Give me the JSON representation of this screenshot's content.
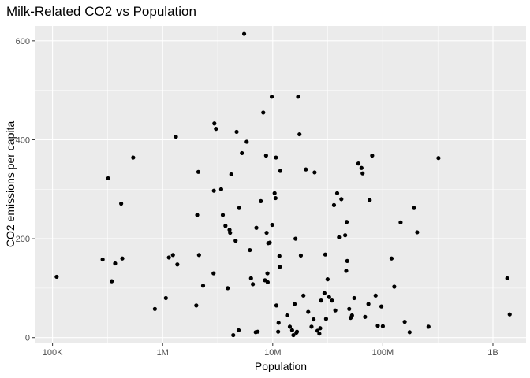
{
  "chart_data": {
    "type": "scatter",
    "title": "Milk-Related CO2 vs Population",
    "xlabel": "Population",
    "ylabel": "CO2 emissions per capita",
    "x_scale": "log10",
    "xlim": [
      70000,
      2000000000
    ],
    "ylim": [
      -10,
      630
    ],
    "x_ticks": [
      {
        "value": 100000,
        "label": "100K"
      },
      {
        "value": 1000000,
        "label": "1M"
      },
      {
        "value": 10000000,
        "label": "10M"
      },
      {
        "value": 100000000,
        "label": "100M"
      },
      {
        "value": 1000000000,
        "label": "1B"
      }
    ],
    "y_ticks": [
      {
        "value": 0,
        "label": "0"
      },
      {
        "value": 200,
        "label": "200"
      },
      {
        "value": 400,
        "label": "400"
      },
      {
        "value": 600,
        "label": "600"
      }
    ],
    "grid": true,
    "background": "#ebebeb",
    "grid_color": "#ffffff",
    "point_color": "#000000",
    "points": [
      {
        "x": 109000,
        "y": 123
      },
      {
        "x": 285000,
        "y": 158
      },
      {
        "x": 320000,
        "y": 322
      },
      {
        "x": 345000,
        "y": 114
      },
      {
        "x": 370000,
        "y": 150
      },
      {
        "x": 420000,
        "y": 271
      },
      {
        "x": 430000,
        "y": 160
      },
      {
        "x": 540000,
        "y": 364
      },
      {
        "x": 850000,
        "y": 58
      },
      {
        "x": 1070000,
        "y": 80
      },
      {
        "x": 1140000,
        "y": 162
      },
      {
        "x": 1240000,
        "y": 167
      },
      {
        "x": 1320000,
        "y": 406
      },
      {
        "x": 1360000,
        "y": 148
      },
      {
        "x": 2020000,
        "y": 65
      },
      {
        "x": 2060000,
        "y": 248
      },
      {
        "x": 2110000,
        "y": 335
      },
      {
        "x": 2140000,
        "y": 167
      },
      {
        "x": 2330000,
        "y": 105
      },
      {
        "x": 2900000,
        "y": 130
      },
      {
        "x": 2920000,
        "y": 297
      },
      {
        "x": 2950000,
        "y": 433
      },
      {
        "x": 3050000,
        "y": 422
      },
      {
        "x": 3400000,
        "y": 300
      },
      {
        "x": 3520000,
        "y": 248
      },
      {
        "x": 3720000,
        "y": 226
      },
      {
        "x": 3900000,
        "y": 100
      },
      {
        "x": 4050000,
        "y": 218
      },
      {
        "x": 4100000,
        "y": 212
      },
      {
        "x": 4200000,
        "y": 330
      },
      {
        "x": 4380000,
        "y": 5
      },
      {
        "x": 4600000,
        "y": 196
      },
      {
        "x": 4700000,
        "y": 416
      },
      {
        "x": 4900000,
        "y": 15
      },
      {
        "x": 4950000,
        "y": 262
      },
      {
        "x": 5250000,
        "y": 373
      },
      {
        "x": 5500000,
        "y": 614
      },
      {
        "x": 5800000,
        "y": 396
      },
      {
        "x": 6200000,
        "y": 177
      },
      {
        "x": 6350000,
        "y": 120
      },
      {
        "x": 6600000,
        "y": 108
      },
      {
        "x": 7000000,
        "y": 11
      },
      {
        "x": 7100000,
        "y": 222
      },
      {
        "x": 7300000,
        "y": 12
      },
      {
        "x": 7800000,
        "y": 276
      },
      {
        "x": 8200000,
        "y": 455
      },
      {
        "x": 8500000,
        "y": 116
      },
      {
        "x": 8700000,
        "y": 368
      },
      {
        "x": 8800000,
        "y": 212
      },
      {
        "x": 8950000,
        "y": 130
      },
      {
        "x": 9000000,
        "y": 112
      },
      {
        "x": 9100000,
        "y": 191
      },
      {
        "x": 9400000,
        "y": 192
      },
      {
        "x": 9800000,
        "y": 487
      },
      {
        "x": 9900000,
        "y": 228
      },
      {
        "x": 10400000,
        "y": 292
      },
      {
        "x": 10600000,
        "y": 282
      },
      {
        "x": 10700000,
        "y": 364
      },
      {
        "x": 10800000,
        "y": 65
      },
      {
        "x": 11200000,
        "y": 12
      },
      {
        "x": 11300000,
        "y": 30
      },
      {
        "x": 11500000,
        "y": 165
      },
      {
        "x": 11600000,
        "y": 143
      },
      {
        "x": 11700000,
        "y": 337
      },
      {
        "x": 13500000,
        "y": 45
      },
      {
        "x": 14300000,
        "y": 22
      },
      {
        "x": 15000000,
        "y": 15
      },
      {
        "x": 15400000,
        "y": 5
      },
      {
        "x": 15800000,
        "y": 68
      },
      {
        "x": 16100000,
        "y": 200
      },
      {
        "x": 16400000,
        "y": 10
      },
      {
        "x": 16600000,
        "y": 12
      },
      {
        "x": 17000000,
        "y": 487
      },
      {
        "x": 17500000,
        "y": 411
      },
      {
        "x": 18000000,
        "y": 166
      },
      {
        "x": 19000000,
        "y": 85
      },
      {
        "x": 20000000,
        "y": 340
      },
      {
        "x": 21000000,
        "y": 52
      },
      {
        "x": 22500000,
        "y": 22
      },
      {
        "x": 23500000,
        "y": 37
      },
      {
        "x": 24000000,
        "y": 334
      },
      {
        "x": 25500000,
        "y": 14
      },
      {
        "x": 26500000,
        "y": 8
      },
      {
        "x": 27000000,
        "y": 19
      },
      {
        "x": 27500000,
        "y": 75
      },
      {
        "x": 29500000,
        "y": 90
      },
      {
        "x": 30000000,
        "y": 168
      },
      {
        "x": 30500000,
        "y": 38
      },
      {
        "x": 31500000,
        "y": 118
      },
      {
        "x": 32500000,
        "y": 82
      },
      {
        "x": 34500000,
        "y": 75
      },
      {
        "x": 36000000,
        "y": 268
      },
      {
        "x": 37000000,
        "y": 55
      },
      {
        "x": 38500000,
        "y": 292
      },
      {
        "x": 40000000,
        "y": 203
      },
      {
        "x": 42000000,
        "y": 280
      },
      {
        "x": 45500000,
        "y": 207
      },
      {
        "x": 46500000,
        "y": 135
      },
      {
        "x": 47000000,
        "y": 234
      },
      {
        "x": 47500000,
        "y": 155
      },
      {
        "x": 49500000,
        "y": 58
      },
      {
        "x": 51000000,
        "y": 40
      },
      {
        "x": 52500000,
        "y": 45
      },
      {
        "x": 55000000,
        "y": 80
      },
      {
        "x": 60000000,
        "y": 352
      },
      {
        "x": 64000000,
        "y": 343
      },
      {
        "x": 65500000,
        "y": 332
      },
      {
        "x": 69000000,
        "y": 42
      },
      {
        "x": 74000000,
        "y": 68
      },
      {
        "x": 76000000,
        "y": 278
      },
      {
        "x": 80000000,
        "y": 368
      },
      {
        "x": 86000000,
        "y": 85
      },
      {
        "x": 90000000,
        "y": 24
      },
      {
        "x": 97000000,
        "y": 63
      },
      {
        "x": 100000000,
        "y": 23
      },
      {
        "x": 120000000,
        "y": 160
      },
      {
        "x": 127000000,
        "y": 103
      },
      {
        "x": 145000000,
        "y": 233
      },
      {
        "x": 158000000,
        "y": 32
      },
      {
        "x": 175000000,
        "y": 11
      },
      {
        "x": 192000000,
        "y": 262
      },
      {
        "x": 205000000,
        "y": 213
      },
      {
        "x": 260000000,
        "y": 22
      },
      {
        "x": 320000000,
        "y": 363
      },
      {
        "x": 1350000000,
        "y": 120
      },
      {
        "x": 1420000000,
        "y": 47
      }
    ]
  }
}
